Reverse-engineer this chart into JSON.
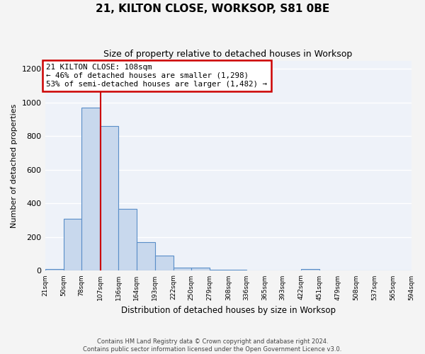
{
  "title": "21, KILTON CLOSE, WORKSOP, S81 0BE",
  "subtitle": "Size of property relative to detached houses in Worksop",
  "xlabel": "Distribution of detached houses by size in Worksop",
  "ylabel": "Number of detached properties",
  "bin_edges": [
    21,
    50,
    78,
    107,
    136,
    164,
    193,
    222,
    250,
    279,
    308,
    336,
    365,
    393,
    422,
    451,
    479,
    508,
    537,
    565,
    594
  ],
  "bar_heights": [
    10,
    310,
    970,
    860,
    370,
    170,
    90,
    20,
    20,
    5,
    5,
    0,
    0,
    0,
    10,
    0,
    0,
    0,
    0,
    0
  ],
  "bar_face_color": "#c8d8ed",
  "bar_edge_color": "#5a8ec8",
  "property_size": 108,
  "vline_color": "#cc0000",
  "annotation_text": "21 KILTON CLOSE: 108sqm\n← 46% of detached houses are smaller (1,298)\n53% of semi-detached houses are larger (1,482) →",
  "annotation_box_color": "#cc0000",
  "ylim": [
    0,
    1250
  ],
  "yticks": [
    0,
    200,
    400,
    600,
    800,
    1000,
    1200
  ],
  "tick_labels": [
    "21sqm",
    "50sqm",
    "78sqm",
    "107sqm",
    "136sqm",
    "164sqm",
    "193sqm",
    "222sqm",
    "250sqm",
    "279sqm",
    "308sqm",
    "336sqm",
    "365sqm",
    "393sqm",
    "422sqm",
    "451sqm",
    "479sqm",
    "508sqm",
    "537sqm",
    "565sqm",
    "594sqm"
  ],
  "background_color": "#eef2f9",
  "grid_color": "#ffffff",
  "fig_facecolor": "#f4f4f4",
  "footer_text": "Contains HM Land Registry data © Crown copyright and database right 2024.\nContains public sector information licensed under the Open Government Licence v3.0."
}
